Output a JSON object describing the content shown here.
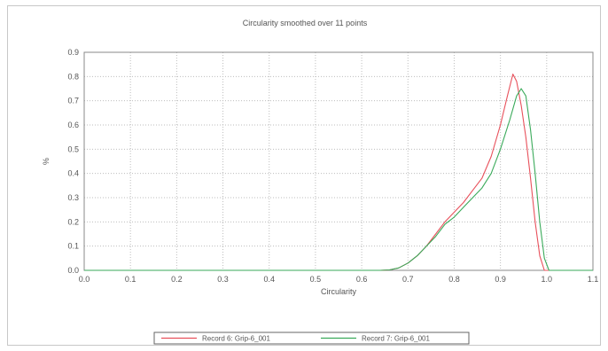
{
  "chart_data": {
    "type": "line",
    "title": "Circularity smoothed over 11 points",
    "xlabel": "Circularity",
    "ylabel": "%",
    "xlim": [
      0.0,
      1.1
    ],
    "ylim": [
      0.0,
      0.9
    ],
    "x_ticks": [
      "0.0",
      "0.1",
      "0.2",
      "0.3",
      "0.4",
      "0.5",
      "0.6",
      "0.7",
      "0.8",
      "0.9",
      "1.0",
      "1.1"
    ],
    "y_ticks": [
      "0.0",
      "0.1",
      "0.2",
      "0.3",
      "0.4",
      "0.5",
      "0.6",
      "0.7",
      "0.8",
      "0.9"
    ],
    "grid": true,
    "legend_position": "bottom",
    "series": [
      {
        "name": "Record 6: Grip-6_001",
        "color": "#e8505b",
        "points": [
          [
            0.0,
            0.0
          ],
          [
            0.64,
            0.0
          ],
          [
            0.66,
            0.002
          ],
          [
            0.68,
            0.01
          ],
          [
            0.7,
            0.03
          ],
          [
            0.72,
            0.06
          ],
          [
            0.74,
            0.1
          ],
          [
            0.76,
            0.15
          ],
          [
            0.78,
            0.2
          ],
          [
            0.8,
            0.24
          ],
          [
            0.82,
            0.28
          ],
          [
            0.84,
            0.33
          ],
          [
            0.86,
            0.38
          ],
          [
            0.88,
            0.47
          ],
          [
            0.9,
            0.6
          ],
          [
            0.915,
            0.72
          ],
          [
            0.927,
            0.81
          ],
          [
            0.935,
            0.78
          ],
          [
            0.945,
            0.68
          ],
          [
            0.955,
            0.55
          ],
          [
            0.965,
            0.38
          ],
          [
            0.975,
            0.2
          ],
          [
            0.985,
            0.06
          ],
          [
            0.995,
            0.0
          ],
          [
            1.1,
            0.0
          ]
        ]
      },
      {
        "name": "Record 7: Grip-6_001",
        "color": "#3aaa5a",
        "points": [
          [
            0.0,
            0.0
          ],
          [
            0.64,
            0.0
          ],
          [
            0.66,
            0.002
          ],
          [
            0.68,
            0.01
          ],
          [
            0.7,
            0.03
          ],
          [
            0.72,
            0.06
          ],
          [
            0.74,
            0.1
          ],
          [
            0.76,
            0.14
          ],
          [
            0.78,
            0.19
          ],
          [
            0.8,
            0.22
          ],
          [
            0.82,
            0.26
          ],
          [
            0.84,
            0.3
          ],
          [
            0.86,
            0.34
          ],
          [
            0.88,
            0.4
          ],
          [
            0.9,
            0.5
          ],
          [
            0.92,
            0.62
          ],
          [
            0.935,
            0.72
          ],
          [
            0.945,
            0.75
          ],
          [
            0.955,
            0.72
          ],
          [
            0.965,
            0.58
          ],
          [
            0.975,
            0.4
          ],
          [
            0.985,
            0.2
          ],
          [
            0.995,
            0.05
          ],
          [
            1.005,
            0.0
          ],
          [
            1.1,
            0.0
          ]
        ]
      }
    ]
  }
}
